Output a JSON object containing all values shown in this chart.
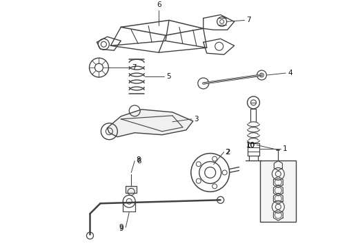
{
  "bg_color": "#ffffff",
  "line_color": "#404040",
  "fig_width": 4.9,
  "fig_height": 3.6,
  "dpi": 100,
  "label_fontsize": 7.5,
  "lw": 0.9
}
